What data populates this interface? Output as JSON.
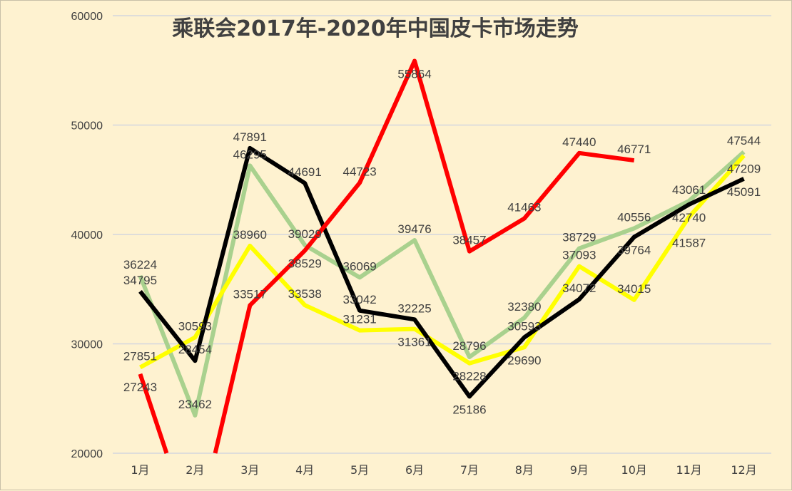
{
  "chart_data": {
    "type": "line",
    "title": "乘联会2017年-2020年中国皮卡市场走势",
    "categories": [
      "1月",
      "2月",
      "3月",
      "4月",
      "5月",
      "6月",
      "7月",
      "8月",
      "9月",
      "10月",
      "11月",
      "12月"
    ],
    "ylim": [
      20000,
      60000
    ],
    "yticks": [
      20000,
      30000,
      40000,
      50000,
      60000
    ],
    "grid": true,
    "legend": "none",
    "series": [
      {
        "color": "#A9D18E",
        "values": [
          36224,
          23462,
          46295,
          39029,
          36069,
          39476,
          28796,
          32380,
          38729,
          40556,
          43061,
          47544
        ]
      },
      {
        "color": "#FFFF00",
        "values": [
          27851,
          30593,
          38960,
          33538,
          31231,
          31361,
          28228,
          29690,
          37093,
          34015,
          41587,
          47209
        ]
      },
      {
        "color": "#000000",
        "values": [
          34795,
          28454,
          47891,
          44691,
          33042,
          32225,
          25186,
          30593,
          34072,
          39764,
          42740,
          45091
        ]
      },
      {
        "color": "#FF0000",
        "values": [
          27243,
          null,
          33517,
          38529,
          44723,
          55864,
          38457,
          41463,
          47440,
          46771,
          null,
          null
        ],
        "below_axis_after": [
          0,
          2
        ]
      }
    ]
  }
}
